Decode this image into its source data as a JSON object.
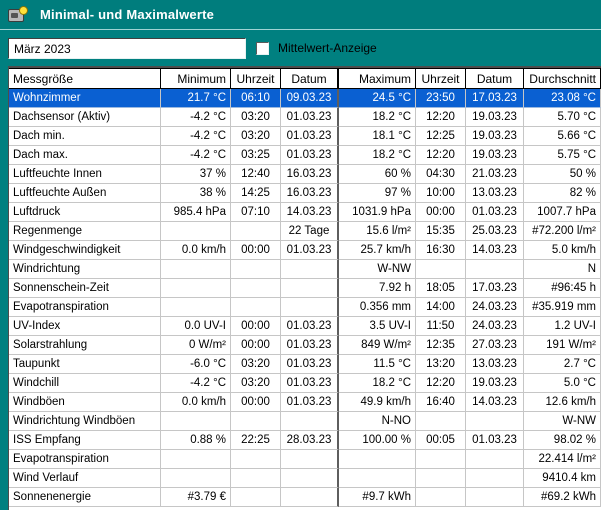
{
  "window": {
    "title": "Minimal- und Maximalwerte",
    "icon": "weather-station-icon"
  },
  "toolbar": {
    "period_value": "März 2023",
    "mittelwert_label": "Mittelwert-Anzeige",
    "mittelwert_checked": false
  },
  "colors": {
    "titlebar": "#007d7d",
    "window_background": "#008080",
    "selection_blue": "#0a60d2",
    "gridline": "#c6c6c6",
    "header_border": "#000000"
  },
  "table": {
    "selected_row_index": 0,
    "columns": [
      "Messgröße",
      "Minimum",
      "Uhrzeit",
      "Datum",
      "Maximum",
      "Uhrzeit",
      "Datum",
      "Durchschnitt"
    ],
    "rows": [
      [
        "Wohnzimmer",
        "21.7 °C",
        "06:10",
        "09.03.23",
        "24.5 °C",
        "23:50",
        "17.03.23",
        "23.08 °C"
      ],
      [
        "Dachsensor (Aktiv)",
        "-4.2 °C",
        "03:20",
        "01.03.23",
        "18.2 °C",
        "12:20",
        "19.03.23",
        "5.70 °C"
      ],
      [
        "Dach min.",
        "-4.2 °C",
        "03:20",
        "01.03.23",
        "18.1 °C",
        "12:25",
        "19.03.23",
        "5.66 °C"
      ],
      [
        "Dach max.",
        "-4.2 °C",
        "03:25",
        "01.03.23",
        "18.2 °C",
        "12:20",
        "19.03.23",
        "5.75 °C"
      ],
      [
        "Luftfeuchte Innen",
        "37 %",
        "12:40",
        "16.03.23",
        "60 %",
        "04:30",
        "21.03.23",
        "50 %"
      ],
      [
        "Luftfeuchte Außen",
        "38 %",
        "14:25",
        "16.03.23",
        "97 %",
        "10:00",
        "13.03.23",
        "82 %"
      ],
      [
        "Luftdruck",
        "985.4 hPa",
        "07:10",
        "14.03.23",
        "1031.9 hPa",
        "00:00",
        "01.03.23",
        "1007.7 hPa"
      ],
      [
        "Regenmenge",
        "",
        "",
        "22 Tage",
        "15.6 l/m²",
        "15:35",
        "25.03.23",
        "#72.200 l/m²"
      ],
      [
        "Windgeschwindigkeit",
        "0.0 km/h",
        "00:00",
        "01.03.23",
        "25.7 km/h",
        "16:30",
        "14.03.23",
        "5.0 km/h"
      ],
      [
        "Windrichtung",
        "",
        "",
        "",
        "W-NW",
        "",
        "",
        "N"
      ],
      [
        "Sonnenschein-Zeit",
        "",
        "",
        "",
        "7.92 h",
        "18:05",
        "17.03.23",
        "#96:45 h"
      ],
      [
        "Evapotranspiration",
        "",
        "",
        "",
        "0.356 mm",
        "14:00",
        "24.03.23",
        "#35.919 mm"
      ],
      [
        "UV-Index",
        "0.0 UV-I",
        "00:00",
        "01.03.23",
        "3.5 UV-I",
        "11:50",
        "24.03.23",
        "1.2 UV-I"
      ],
      [
        "Solarstrahlung",
        "0 W/m²",
        "00:00",
        "01.03.23",
        "849 W/m²",
        "12:35",
        "27.03.23",
        "191 W/m²"
      ],
      [
        "Taupunkt",
        "-6.0 °C",
        "03:20",
        "01.03.23",
        "11.5 °C",
        "13:20",
        "13.03.23",
        "2.7 °C"
      ],
      [
        "Windchill",
        "-4.2 °C",
        "03:20",
        "01.03.23",
        "18.2 °C",
        "12:20",
        "19.03.23",
        "5.0 °C"
      ],
      [
        "Windböen",
        "0.0 km/h",
        "00:00",
        "01.03.23",
        "49.9 km/h",
        "16:40",
        "14.03.23",
        "12.6 km/h"
      ],
      [
        "Windrichtung Windböen",
        "",
        "",
        "",
        "N-NO",
        "",
        "",
        "W-NW"
      ],
      [
        "ISS Empfang",
        "0.88 %",
        "22:25",
        "28.03.23",
        "100.00 %",
        "00:05",
        "01.03.23",
        "98.02 %"
      ],
      [
        "Evapotranspiration",
        "",
        "",
        "",
        "",
        "",
        "",
        "22.414 l/m²"
      ],
      [
        "Wind Verlauf",
        "",
        "",
        "",
        "",
        "",
        "",
        "9410.4 km"
      ],
      [
        "Sonnenenergie",
        "#3.79 €",
        "",
        "",
        "#9.7 kWh",
        "",
        "",
        "#69.2 kWh"
      ]
    ]
  }
}
